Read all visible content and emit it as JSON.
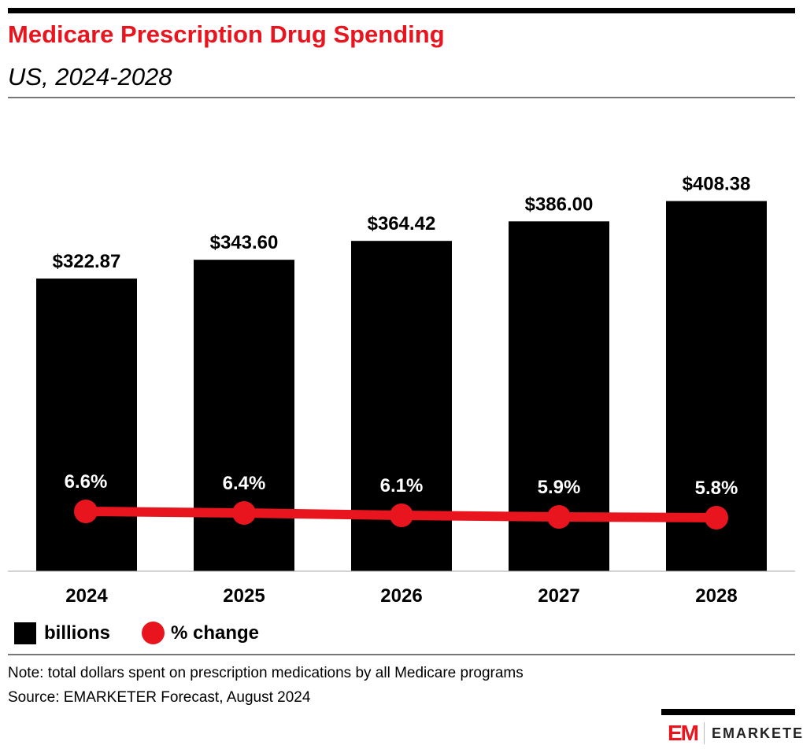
{
  "header": {
    "title": "Medicare Prescription Drug Spending",
    "subtitle": "US, 2024-2028"
  },
  "chart_data": {
    "type": "bar",
    "categories": [
      "2024",
      "2025",
      "2026",
      "2027",
      "2028"
    ],
    "series": [
      {
        "name": "billions",
        "type": "bar",
        "values": [
          322.87,
          343.6,
          364.42,
          386.0,
          408.38
        ],
        "labels": [
          "$322.87",
          "$343.60",
          "$364.42",
          "$386.00",
          "$408.38"
        ],
        "color": "#000000"
      },
      {
        "name": "% change",
        "type": "line",
        "values": [
          6.6,
          6.4,
          6.1,
          5.9,
          5.8
        ],
        "labels": [
          "6.6%",
          "6.4%",
          "6.1%",
          "5.9%",
          "5.8%"
        ],
        "color": "#e8141e"
      }
    ],
    "grid": false,
    "legend": "bottom-left"
  },
  "legend": {
    "bar": "billions",
    "line": "% change"
  },
  "footer": {
    "note": "Note: total dollars spent on prescription medications by all Medicare programs",
    "source": "Source: EMARKETER Forecast, August 2024",
    "logo_mark": "EM",
    "logo_text": "EMARKETER"
  }
}
